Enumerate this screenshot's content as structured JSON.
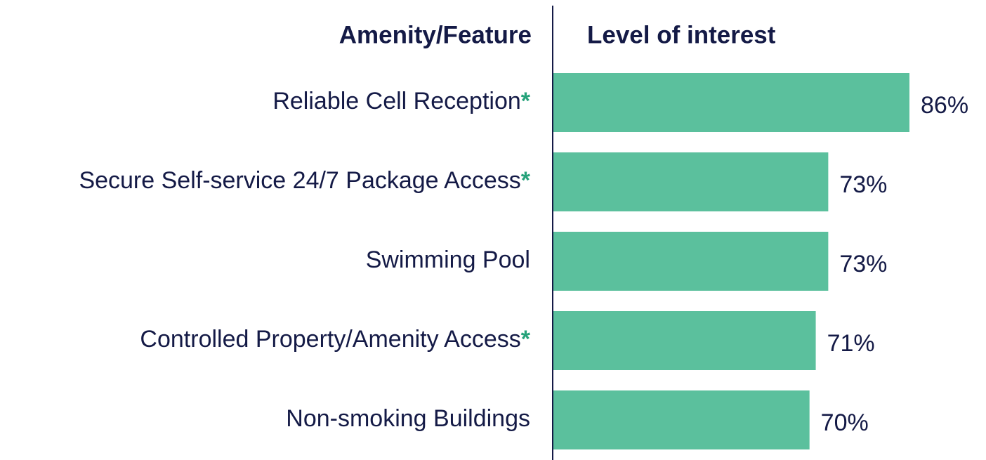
{
  "chart_data": {
    "type": "bar",
    "orientation": "horizontal",
    "category_header": "Amenity/Feature",
    "value_header": "Level of interest",
    "categories": [
      "Reliable Cell Reception*",
      "Secure Self-service 24/7 Package Access*",
      "Swimming Pool",
      "Controlled Property/Amenity Access*",
      "Non-smoking Buildings"
    ],
    "values": [
      86,
      73,
      73,
      71,
      70
    ],
    "value_labels": [
      "86%",
      "73%",
      "73%",
      "71%",
      "70%"
    ],
    "color": "#5bc09d",
    "xlim": [
      29,
      86
    ]
  }
}
